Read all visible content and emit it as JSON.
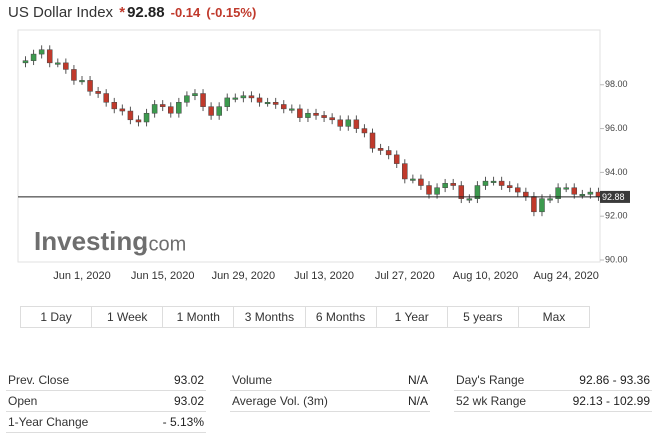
{
  "header": {
    "title": "US Dollar Index",
    "price": "92.88",
    "change": "-0.14",
    "change_pct": "(-0.15%)"
  },
  "watermark": {
    "brand": "Investing",
    "suffix": ".com"
  },
  "chart_data": {
    "type": "candlestick",
    "categories": [
      null,
      null,
      null,
      null,
      null,
      null,
      null,
      "Jun 1, 2020",
      null,
      null,
      null,
      null,
      null,
      null,
      null,
      null,
      null,
      "Jun 15, 2020",
      null,
      null,
      null,
      null,
      null,
      null,
      null,
      null,
      null,
      "Jun 29, 2020",
      null,
      null,
      null,
      null,
      null,
      null,
      null,
      null,
      null,
      "Jul 13, 2020",
      null,
      null,
      null,
      null,
      null,
      null,
      null,
      null,
      null,
      "Jul 27, 2020",
      null,
      null,
      null,
      null,
      null,
      null,
      null,
      null,
      null,
      "Aug 10, 2020",
      null,
      null,
      null,
      null,
      null,
      null,
      null,
      null,
      null,
      "Aug 24, 2020",
      null,
      null,
      null,
      null
    ],
    "open": [
      99.0,
      99.1,
      99.4,
      99.6,
      99.0,
      99.0,
      98.7,
      98.2,
      98.2,
      97.7,
      97.6,
      97.2,
      96.9,
      96.8,
      96.4,
      96.3,
      96.7,
      97.1,
      97.0,
      96.7,
      97.2,
      97.5,
      97.6,
      97.0,
      96.6,
      97.0,
      97.4,
      97.4,
      97.5,
      97.4,
      97.2,
      97.2,
      97.1,
      96.9,
      96.9,
      96.5,
      96.7,
      96.6,
      96.5,
      96.4,
      96.1,
      96.4,
      96.0,
      95.8,
      95.1,
      95.0,
      94.8,
      94.4,
      93.7,
      93.7,
      93.4,
      93.0,
      93.3,
      93.5,
      93.4,
      92.8,
      92.8,
      93.4,
      93.6,
      93.6,
      93.4,
      93.3,
      93.1,
      92.9,
      92.2,
      92.8,
      92.8,
      93.3,
      93.3,
      93.0,
      93.0,
      93.1
    ],
    "high": [
      99.3,
      99.6,
      99.8,
      99.8,
      99.2,
      99.2,
      98.9,
      98.4,
      98.4,
      97.9,
      97.8,
      97.4,
      97.1,
      97.0,
      96.6,
      96.9,
      97.3,
      97.3,
      97.2,
      97.4,
      97.7,
      97.8,
      97.8,
      97.2,
      97.2,
      97.6,
      97.6,
      97.7,
      97.7,
      97.6,
      97.4,
      97.4,
      97.3,
      97.1,
      97.1,
      96.9,
      96.9,
      96.8,
      96.7,
      96.6,
      96.6,
      96.6,
      96.2,
      96.0,
      95.3,
      95.2,
      95.0,
      94.6,
      93.9,
      93.9,
      93.6,
      93.5,
      93.7,
      93.7,
      93.6,
      93.0,
      93.6,
      93.8,
      93.8,
      93.8,
      93.6,
      93.5,
      93.3,
      93.1,
      93.0,
      93.0,
      93.5,
      93.5,
      93.5,
      93.2,
      93.3,
      93.3
    ],
    "low": [
      98.8,
      98.9,
      99.2,
      98.8,
      98.8,
      98.5,
      98.0,
      98.0,
      97.5,
      97.4,
      97.0,
      96.7,
      96.6,
      96.2,
      96.1,
      96.1,
      96.5,
      96.8,
      96.5,
      96.5,
      97.0,
      97.3,
      96.8,
      96.4,
      96.4,
      96.8,
      97.2,
      97.2,
      97.2,
      97.0,
      97.0,
      96.9,
      96.7,
      96.7,
      96.3,
      96.3,
      96.4,
      96.3,
      96.2,
      95.9,
      95.9,
      95.8,
      95.6,
      94.9,
      94.8,
      94.6,
      94.2,
      93.5,
      93.5,
      93.2,
      92.8,
      92.8,
      93.1,
      93.2,
      92.6,
      92.6,
      92.6,
      93.2,
      93.4,
      93.2,
      93.1,
      92.9,
      92.7,
      92.0,
      92.0,
      92.6,
      92.6,
      93.1,
      92.8,
      92.8,
      92.8,
      92.7
    ],
    "close": [
      99.1,
      99.4,
      99.6,
      99.0,
      99.0,
      98.7,
      98.2,
      98.2,
      97.7,
      97.6,
      97.2,
      96.9,
      96.8,
      96.4,
      96.3,
      96.7,
      97.1,
      97.0,
      96.7,
      97.2,
      97.5,
      97.6,
      97.0,
      96.6,
      97.0,
      97.4,
      97.4,
      97.5,
      97.4,
      97.2,
      97.2,
      97.1,
      96.9,
      96.9,
      96.5,
      96.7,
      96.6,
      96.5,
      96.4,
      96.1,
      96.4,
      96.0,
      95.8,
      95.1,
      95.0,
      94.8,
      94.4,
      93.7,
      93.7,
      93.4,
      93.0,
      93.3,
      93.5,
      93.4,
      92.8,
      92.8,
      93.4,
      93.6,
      93.6,
      93.4,
      93.3,
      93.1,
      92.9,
      92.2,
      92.8,
      92.8,
      93.3,
      93.3,
      93.0,
      93.0,
      93.1,
      92.9
    ],
    "up_color": "#3c9a4e",
    "down_color": "#c0392b",
    "last_price": 92.88,
    "ylim": [
      90,
      100.5
    ],
    "yticks": [
      {
        "value": 90,
        "label": "90.00"
      },
      {
        "value": 92,
        "label": "92.00"
      },
      {
        "value": 94,
        "label": "94.00"
      },
      {
        "value": 96,
        "label": "96.00"
      },
      {
        "value": 98,
        "label": "98.00"
      }
    ]
  },
  "ranges": [
    "1 Day",
    "1 Week",
    "1 Month",
    "3 Months",
    "6 Months",
    "1 Year",
    "5 years",
    "Max"
  ],
  "stats": [
    [
      [
        "Prev. Close",
        "93.02"
      ],
      [
        "Volume",
        "N/A"
      ],
      [
        "Day's Range",
        "92.86 - 93.36"
      ]
    ],
    [
      [
        "Open",
        "93.02"
      ],
      [
        "Average Vol. (3m)",
        "N/A"
      ],
      [
        "52 wk Range",
        "92.13 - 102.99"
      ]
    ],
    [
      [
        "1-Year Change",
        "- 5.13%"
      ]
    ]
  ]
}
